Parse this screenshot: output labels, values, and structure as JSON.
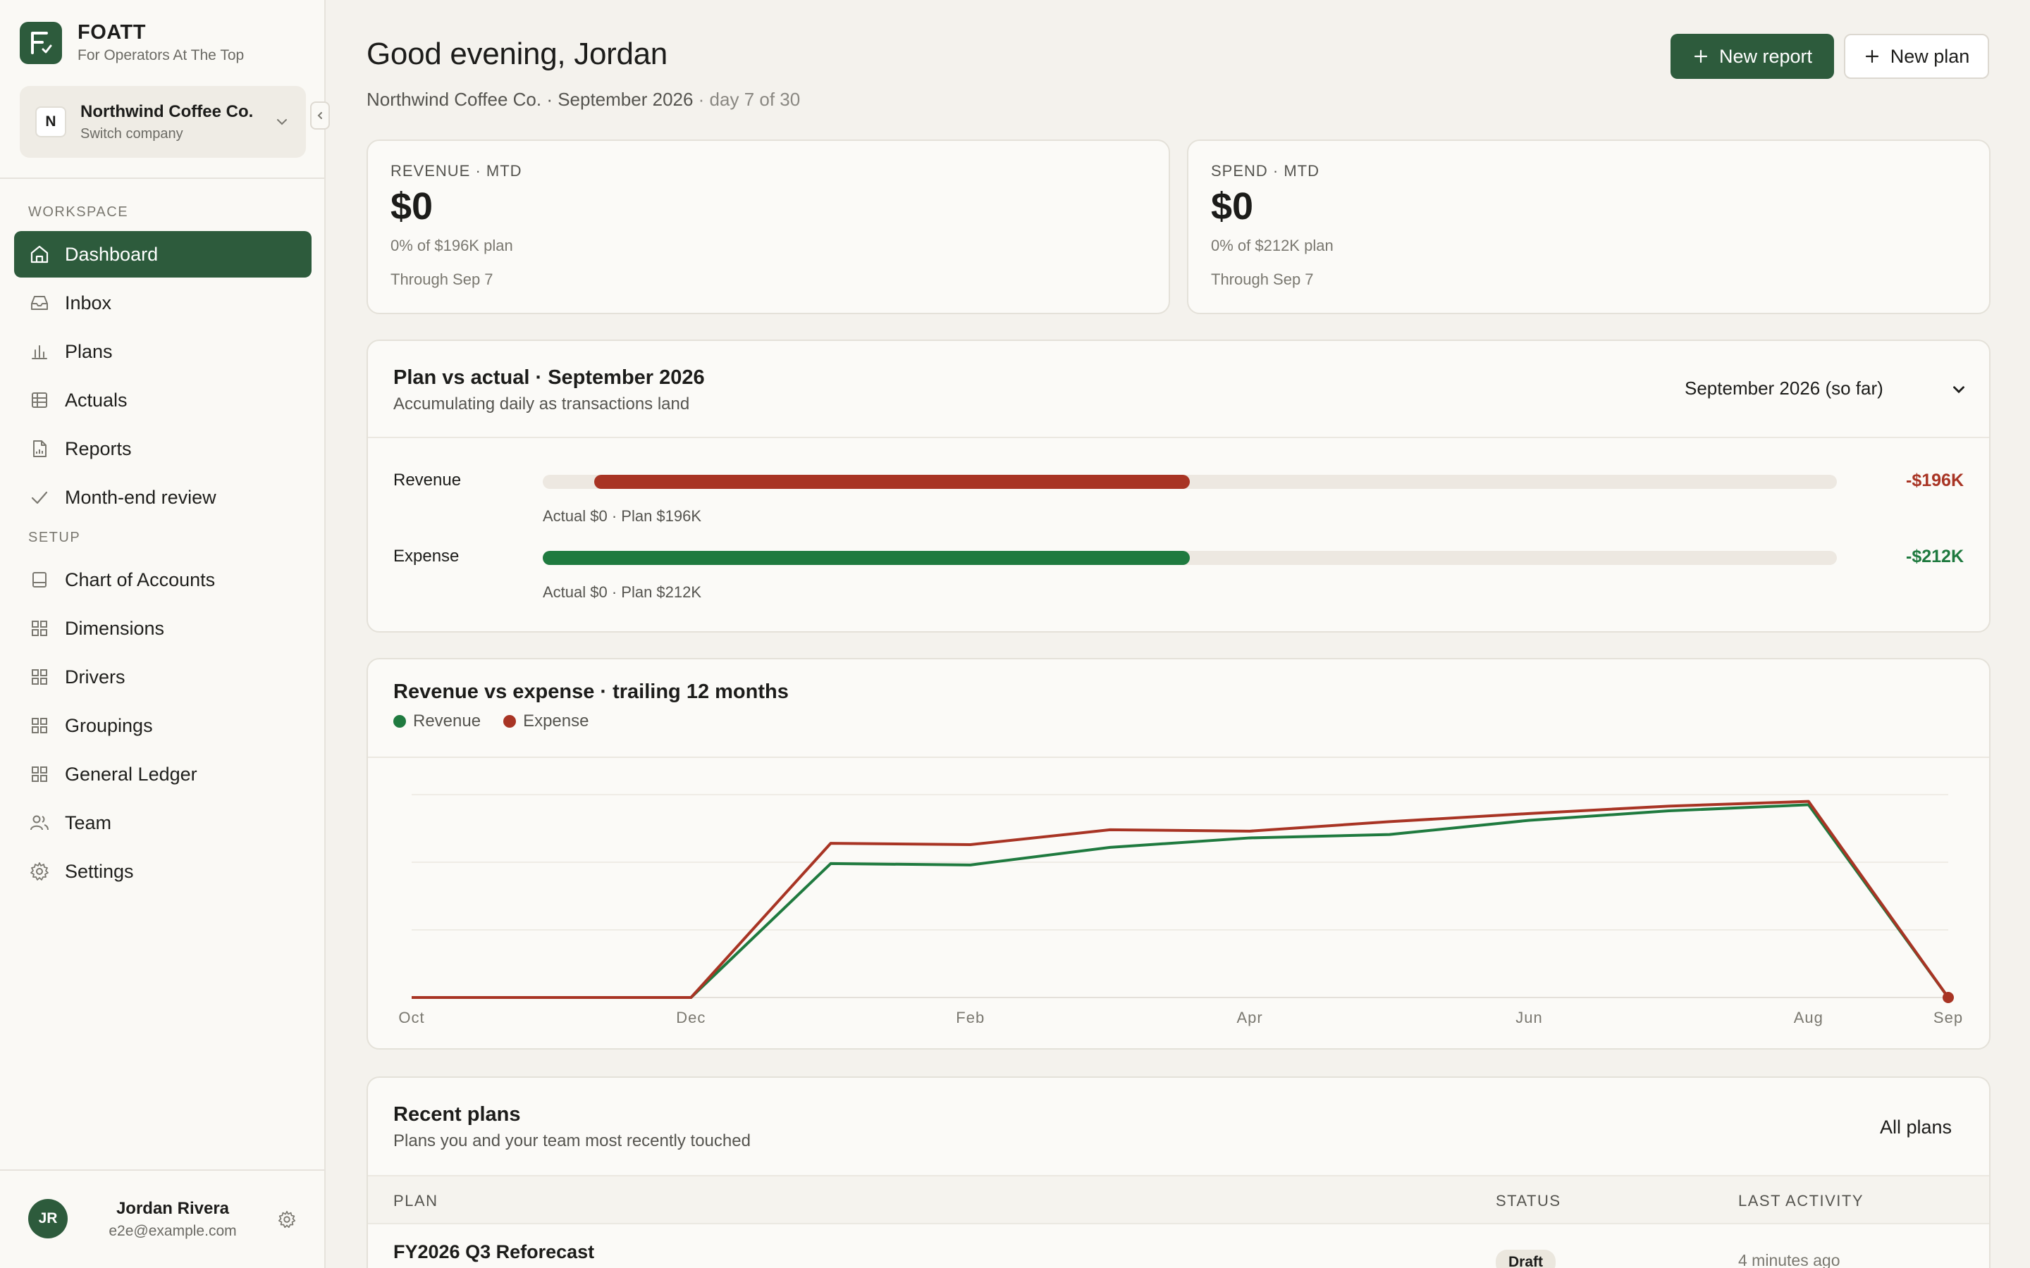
{
  "brand": {
    "name": "FOATT",
    "tagline": "For Operators At The Top"
  },
  "company": {
    "initial": "N",
    "name": "Northwind Coffee Co.",
    "switch_label": "Switch company"
  },
  "sidebar": {
    "workspace_label": "WORKSPACE",
    "setup_label": "SETUP",
    "workspace_items": [
      {
        "label": "Dashboard",
        "icon": "home-icon",
        "active": true
      },
      {
        "label": "Inbox",
        "icon": "inbox-icon"
      },
      {
        "label": "Plans",
        "icon": "bar-chart-icon"
      },
      {
        "label": "Actuals",
        "icon": "table-icon"
      },
      {
        "label": "Reports",
        "icon": "report-icon"
      },
      {
        "label": "Month-end review",
        "icon": "check-icon"
      }
    ],
    "setup_items": [
      {
        "label": "Chart of Accounts",
        "icon": "ledger-icon"
      },
      {
        "label": "Dimensions",
        "icon": "grid-icon"
      },
      {
        "label": "Drivers",
        "icon": "grid-icon"
      },
      {
        "label": "Groupings",
        "icon": "grid-icon"
      },
      {
        "label": "General Ledger",
        "icon": "grid-icon"
      },
      {
        "label": "Team",
        "icon": "team-icon"
      },
      {
        "label": "Settings",
        "icon": "gear-icon"
      }
    ]
  },
  "user": {
    "initials": "JR",
    "name": "Jordan Rivera",
    "email": "e2e@example.com"
  },
  "header": {
    "greeting": "Good evening, Jordan",
    "subtitle": "Northwind Coffee Co. · September 2026",
    "subtitle_muted": " · day 7 of 30",
    "new_report_label": "New report",
    "new_plan_label": "New plan"
  },
  "kpis": {
    "revenue": {
      "label": "REVENUE · MTD",
      "value": "$0",
      "sub": "0% of $196K plan",
      "through": "Through Sep 7"
    },
    "spend": {
      "label": "SPEND · MTD",
      "value": "$0",
      "sub": "0% of $212K plan",
      "through": "Through Sep 7"
    }
  },
  "plan_vs_actual": {
    "title": "Plan vs actual · September 2026",
    "subtitle": "Accumulating daily as transactions land",
    "period_label": "September 2026 (so far)",
    "rows": [
      {
        "label": "Revenue",
        "caption": "Actual $0 · Plan $196K",
        "variance": "-$196K",
        "fill_start": 0.04,
        "fill_end": 0.5,
        "color": "#a83424"
      },
      {
        "label": "Expense",
        "caption": "Actual $0 · Plan $212K",
        "variance": "-$212K",
        "fill_start": 0.0,
        "fill_end": 0.5,
        "color": "#1f7a3f"
      }
    ]
  },
  "trend": {
    "title": "Revenue vs expense · trailing 12 months",
    "legend": [
      {
        "name": "Revenue",
        "color": "#1f7a3f"
      },
      {
        "name": "Expense",
        "color": "#a83424"
      }
    ]
  },
  "chart_data": {
    "type": "line",
    "x": [
      "Oct",
      "Nov",
      "Dec",
      "Jan",
      "Feb",
      "Mar",
      "Apr",
      "May",
      "Jun",
      "Jul",
      "Aug",
      "Sep"
    ],
    "tick_labels": [
      "Oct",
      "Dec",
      "Feb",
      "Apr",
      "Jun",
      "Aug",
      "Sep"
    ],
    "series": [
      {
        "name": "Revenue",
        "color": "#1f7a3f",
        "values": [
          0,
          0,
          0,
          198,
          196,
          222,
          236,
          241,
          262,
          276,
          285,
          0
        ]
      },
      {
        "name": "Expense",
        "color": "#a83424",
        "values": [
          0,
          0,
          0,
          228,
          226,
          248,
          246,
          260,
          272,
          283,
          290,
          0
        ]
      }
    ],
    "ylim": [
      0,
      300
    ],
    "grid": true,
    "legend_position": "top-left"
  },
  "recent_plans": {
    "title": "Recent plans",
    "subtitle": "Plans you and your team most recently touched",
    "all_plans_label": "All plans",
    "columns": [
      "PLAN",
      "STATUS",
      "LAST ACTIVITY"
    ],
    "rows": [
      {
        "plan": "FY2026 Q3 Reforecast",
        "status": "Draft",
        "activity": "4 minutes ago"
      }
    ]
  }
}
